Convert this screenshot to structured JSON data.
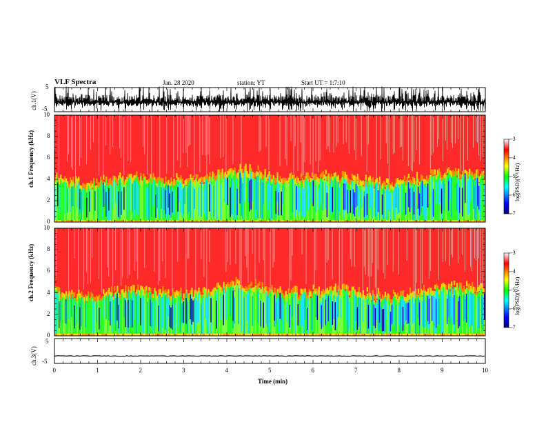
{
  "chart_data": [
    {
      "type": "line",
      "name": "ch.1 waveform",
      "title": "VLF Spectra",
      "date": "Jan. 28 2020",
      "station": "station: YT",
      "start_time": "Start UT = 1:7:10",
      "ylabel": "ch.1(V)",
      "yticks": [
        "5",
        "-5"
      ],
      "ylim": [
        -5,
        5
      ],
      "signal": "high-amplitude noise, clipped"
    },
    {
      "type": "heatmap",
      "name": "ch.1 spectrogram",
      "ylabel": "ch.1 Frequency (kHz)",
      "yticks": [
        "0",
        "2",
        "4",
        "6",
        "8",
        "10"
      ],
      "ylim": [
        0,
        10
      ],
      "xlim": [
        0,
        10
      ],
      "colorbar": {
        "label": "log(PSD)(V²/Hz)",
        "ticks": [
          "-3",
          "-4",
          "-5",
          "-6",
          "-7"
        ],
        "range": [
          -7,
          -3
        ]
      },
      "description": "broadband emission; strong red above ~4 kHz, green/blue banded below"
    },
    {
      "type": "heatmap",
      "name": "ch.2 spectrogram",
      "ylabel": "ch.2 Frequency (kHz)",
      "yticks": [
        "0",
        "2",
        "4",
        "6",
        "8",
        "10"
      ],
      "ylim": [
        0,
        10
      ],
      "xlim": [
        0,
        10
      ],
      "colorbar": {
        "label": "log(PSD)(V²/Hz)",
        "ticks": [
          "-3",
          "-4",
          "-5",
          "-6",
          "-7"
        ],
        "range": [
          -7,
          -3
        ]
      }
    },
    {
      "type": "line",
      "name": "ch.3 waveform",
      "ylabel": "ch.3(V)",
      "yticks": [
        "5",
        "-5"
      ],
      "ylim": [
        -5,
        5
      ],
      "baseline_value": -2,
      "xlabel": "Time (min)",
      "xticks": [
        "0",
        "1",
        "2",
        "3",
        "4",
        "5",
        "6",
        "7",
        "8",
        "9",
        "10"
      ],
      "xlim": [
        0,
        10
      ]
    }
  ],
  "colors": {
    "jet": [
      "#00008f",
      "#0000ff",
      "#00ffff",
      "#00ff00",
      "#ffff00",
      "#ff0000",
      "#ff4040"
    ],
    "wave": "#000000"
  }
}
